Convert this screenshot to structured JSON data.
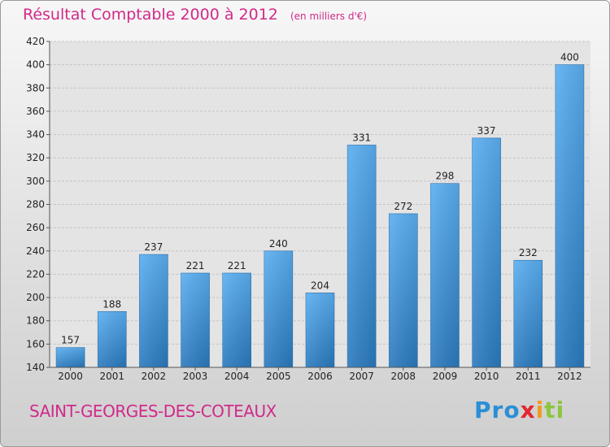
{
  "chart_data": {
    "type": "bar",
    "title": "Résultat Comptable 2000 à 2012",
    "subtitle": "(en milliers d'€)",
    "categories": [
      "2000",
      "2001",
      "2002",
      "2003",
      "2004",
      "2005",
      "2006",
      "2007",
      "2008",
      "2009",
      "2010",
      "2011",
      "2012"
    ],
    "values": [
      157,
      188,
      237,
      221,
      221,
      240,
      204,
      331,
      272,
      298,
      337,
      232,
      400
    ],
    "ylim": [
      140,
      420
    ],
    "yticks": [
      140,
      160,
      180,
      200,
      220,
      240,
      260,
      280,
      300,
      320,
      340,
      360,
      380,
      400,
      420
    ],
    "grid": true,
    "xlabel": "",
    "ylabel": ""
  },
  "commune": "SAINT-GEORGES-DES-COTEAUX",
  "logo": {
    "part1": "Pro",
    "part2": "x",
    "part3": "i",
    "part4": "ti"
  },
  "colors": {
    "bar": "#3d92d8",
    "accent": "#d12a8a"
  }
}
